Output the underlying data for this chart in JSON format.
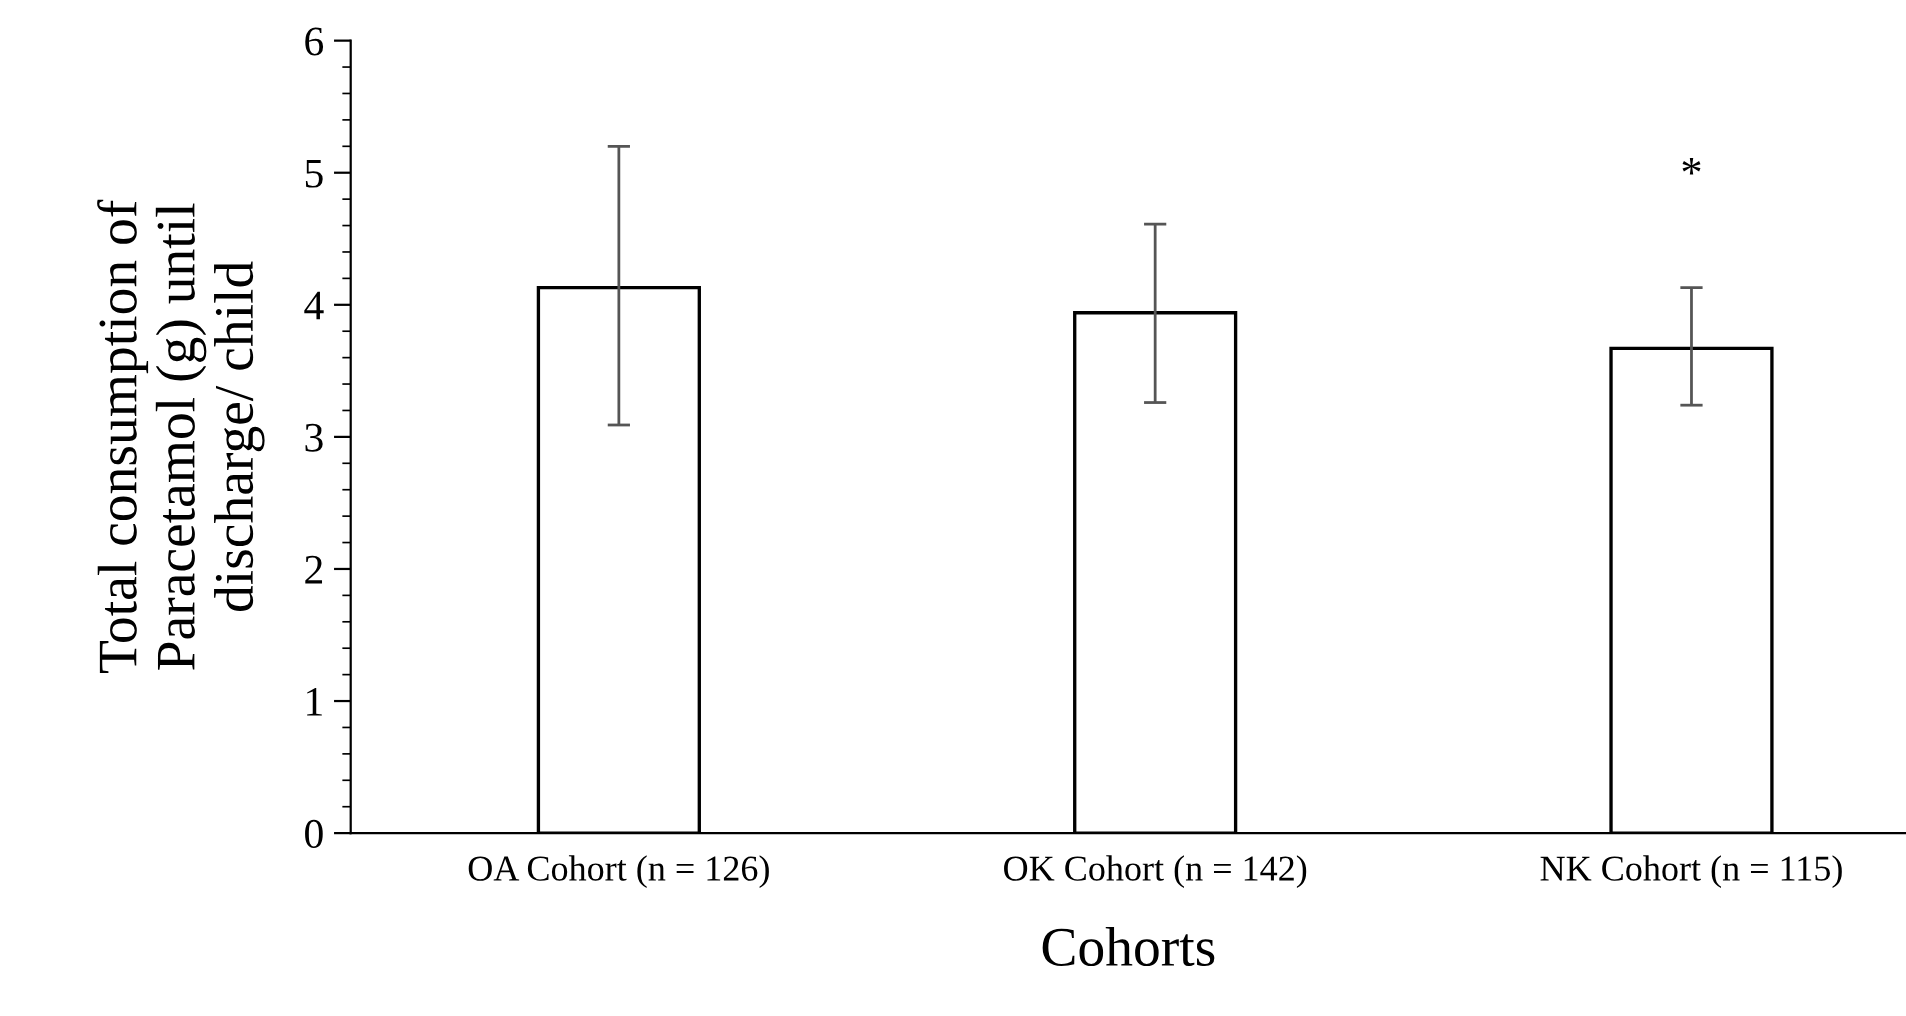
{
  "chart_data": {
    "type": "bar",
    "xlabel": "Cohorts",
    "ylabel": "Total consumption of\nParacetamol (g) until\ndischarge/ child",
    "categories": [
      "OA Cohort (n = 126)",
      "OK Cohort (n = 142)",
      "NK Cohort (n = 115)"
    ],
    "values": [
      4.13,
      3.94,
      3.67
    ],
    "errors": [
      [
        3.09,
        5.2
      ],
      [
        3.26,
        4.61
      ],
      [
        3.24,
        4.13
      ]
    ],
    "color": "#ffffff",
    "ylim": [
      0,
      6
    ],
    "yticks": [
      0,
      1,
      2,
      3,
      4,
      5,
      6
    ],
    "grid": false,
    "annotations": [
      "*"
    ]
  }
}
